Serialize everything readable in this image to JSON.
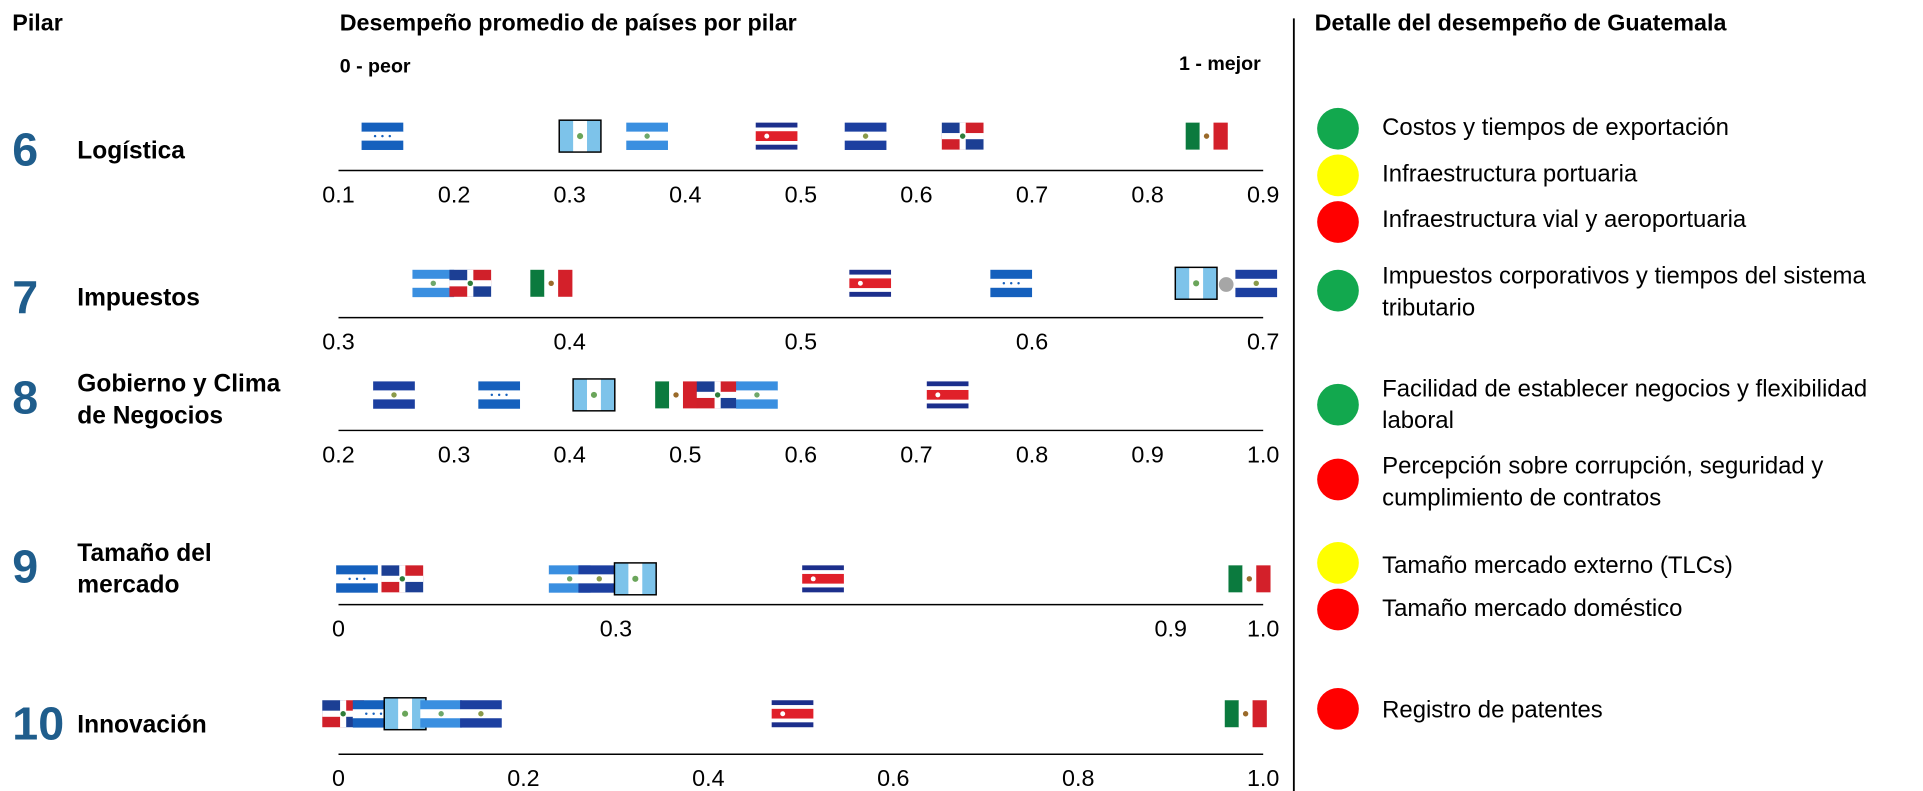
{
  "header": {
    "pillar_label": "Pilar",
    "chart_title": "Desempeño promedio de países por pilar",
    "low_label": "0 - peor",
    "high_label": "1 - mejor",
    "detail_title": "Detalle del desempeño de Guatemala"
  },
  "chart_data": [
    {
      "type": "strip",
      "number": 6,
      "name": [
        "Logística"
      ],
      "xlim": [
        0.1,
        0.9
      ],
      "xticks": [
        0.1,
        0.2,
        0.3,
        0.4,
        0.5,
        0.6,
        0.7,
        0.8,
        0.9
      ],
      "points": [
        {
          "flag": "HN",
          "value": 0.138
        },
        {
          "flag": "GT",
          "value": 0.309
        },
        {
          "flag": "NI",
          "value": 0.367
        },
        {
          "flag": "CR",
          "value": 0.479
        },
        {
          "flag": "SV",
          "value": 0.556
        },
        {
          "flag": "DO",
          "value": 0.64
        },
        {
          "flag": "MX",
          "value": 0.851
        }
      ]
    },
    {
      "type": "strip",
      "number": 7,
      "name": [
        "Impuestos"
      ],
      "xlim": [
        0.3,
        0.7
      ],
      "xticks": [
        0.3,
        0.4,
        0.5,
        0.6,
        0.7
      ],
      "points": [
        {
          "flag": "NI",
          "value": 0.341
        },
        {
          "flag": "DO",
          "value": 0.357
        },
        {
          "flag": "MX",
          "value": 0.392
        },
        {
          "flag": "CR",
          "value": 0.53
        },
        {
          "flag": "HN",
          "value": 0.591
        },
        {
          "flag": "GT",
          "value": 0.671
        },
        {
          "flag": "dot",
          "value": 0.684
        },
        {
          "flag": "SV",
          "value": 0.697
        }
      ]
    },
    {
      "type": "strip",
      "number": 8,
      "name": [
        "Gobierno y Clima",
        "de Negocios"
      ],
      "xlim": [
        0.2,
        1.0
      ],
      "xticks": [
        0.2,
        0.3,
        0.4,
        0.5,
        0.6,
        0.7,
        0.8,
        0.9,
        {
          "value": 1,
          "label": "1.0"
        }
      ],
      "points": [
        {
          "flag": "SV",
          "value": 0.248
        },
        {
          "flag": "HN",
          "value": 0.339
        },
        {
          "flag": "GT",
          "value": 0.421
        },
        {
          "flag": "MX",
          "value": 0.492
        },
        {
          "flag": "DO",
          "value": 0.528
        },
        {
          "flag": "NI",
          "value": 0.562
        },
        {
          "flag": "CR",
          "value": 0.727
        }
      ]
    },
    {
      "type": "strip",
      "number": 9,
      "name": [
        "Tamaño del",
        "mercado"
      ],
      "xlim": [
        0,
        1.0
      ],
      "xticks": [
        0,
        0.3,
        0.9,
        {
          "value": 1,
          "label": "1.0"
        }
      ],
      "points": [
        {
          "flag": "HN",
          "value": 0.02
        },
        {
          "flag": "DO",
          "value": 0.069
        },
        {
          "flag": "NI",
          "value": 0.25
        },
        {
          "flag": "SV",
          "value": 0.282
        },
        {
          "flag": "GT",
          "value": 0.321
        },
        {
          "flag": "CR",
          "value": 0.524
        },
        {
          "flag": "MX",
          "value": 0.985
        }
      ]
    },
    {
      "type": "strip",
      "number": 10,
      "name": [
        "Innovación"
      ],
      "xlim": [
        0,
        1.0
      ],
      "xticks": [
        0,
        0.2,
        0.4,
        0.6,
        0.8,
        {
          "value": 1,
          "label": "1.0"
        }
      ],
      "points": [
        {
          "flag": "DO",
          "value": 0.005
        },
        {
          "flag": "HN",
          "value": 0.038
        },
        {
          "flag": "GT",
          "value": 0.072
        },
        {
          "flag": "NI",
          "value": 0.111
        },
        {
          "flag": "SV",
          "value": 0.154
        },
        {
          "flag": "CR",
          "value": 0.491
        },
        {
          "flag": "MX",
          "value": 0.981
        }
      ]
    }
  ],
  "detail": {
    "items": [
      {
        "color": "#12a84e",
        "lines": [
          "Costos y tiempos de exportación"
        ]
      },
      {
        "color": "#ffff00",
        "lines": [
          "Infraestructura portuaria"
        ]
      },
      {
        "color": "#ff0000",
        "lines": [
          "Infraestructura vial y aeroportuaria"
        ]
      },
      {
        "color": "#12a84e",
        "lines": [
          "Impuestos corporativos y tiempos del sistema",
          "tributario"
        ]
      },
      {
        "color": "#12a84e",
        "lines": [
          "Facilidad de establecer negocios y flexibilidad",
          "laboral"
        ]
      },
      {
        "color": "#ff0000",
        "lines": [
          "Percepción sobre corrupción, seguridad y",
          "cumplimiento de contratos"
        ]
      },
      {
        "color": "#ffff00",
        "lines": [
          "Tamaño mercado externo (TLCs)"
        ]
      },
      {
        "color": "#ff0000",
        "lines": [
          "Tamaño mercado doméstico"
        ]
      },
      {
        "color": "#ff0000",
        "lines": [
          "Registro de patentes"
        ]
      }
    ]
  }
}
